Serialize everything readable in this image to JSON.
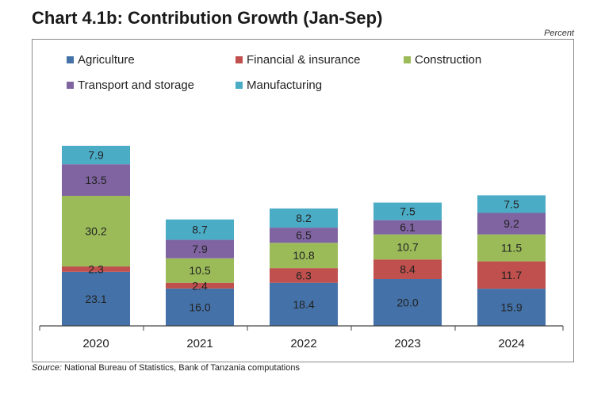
{
  "header": {
    "title": "Chart 4.1b: Contribution Growth (Jan-Sep)",
    "unit_label": "Percent"
  },
  "footer": {
    "source_prefix": "Source:",
    "source_text": " National Bureau of Statistics, Bank of Tanzania computations"
  },
  "chart_data": {
    "type": "bar",
    "stacked": true,
    "categories": [
      "2020",
      "2021",
      "2022",
      "2023",
      "2024"
    ],
    "series": [
      {
        "name": "Agriculture",
        "color": "#4472a8",
        "values": [
          23.1,
          16.0,
          18.4,
          20.0,
          15.9
        ]
      },
      {
        "name": "Financial & insurance",
        "color": "#c0504d",
        "values": [
          2.3,
          2.4,
          6.3,
          8.4,
          11.7
        ]
      },
      {
        "name": "Construction",
        "color": "#9bbb59",
        "values": [
          30.2,
          10.5,
          10.8,
          10.7,
          11.5
        ]
      },
      {
        "name": "Transport and storage",
        "color": "#8064a2",
        "values": [
          13.5,
          7.9,
          6.5,
          6.1,
          9.2
        ]
      },
      {
        "name": "Manufacturing",
        "color": "#4bacc6",
        "values": [
          7.9,
          8.7,
          8.2,
          7.5,
          7.5
        ]
      }
    ],
    "value_labels": [
      [
        "23.1",
        "16.0",
        "18.4",
        "20.0",
        "15.9"
      ],
      [
        "2.3",
        "2.4",
        "6.3",
        "8.4",
        "11.7"
      ],
      [
        "30.2",
        "10.5",
        "10.8",
        "10.7",
        "11.5"
      ],
      [
        "13.5",
        "7.9",
        "6.5",
        "6.1",
        "9.2"
      ],
      [
        "7.9",
        "8.7",
        "8.2",
        "7.5",
        "7.5"
      ]
    ],
    "legend_position": "top",
    "grid": false
  }
}
